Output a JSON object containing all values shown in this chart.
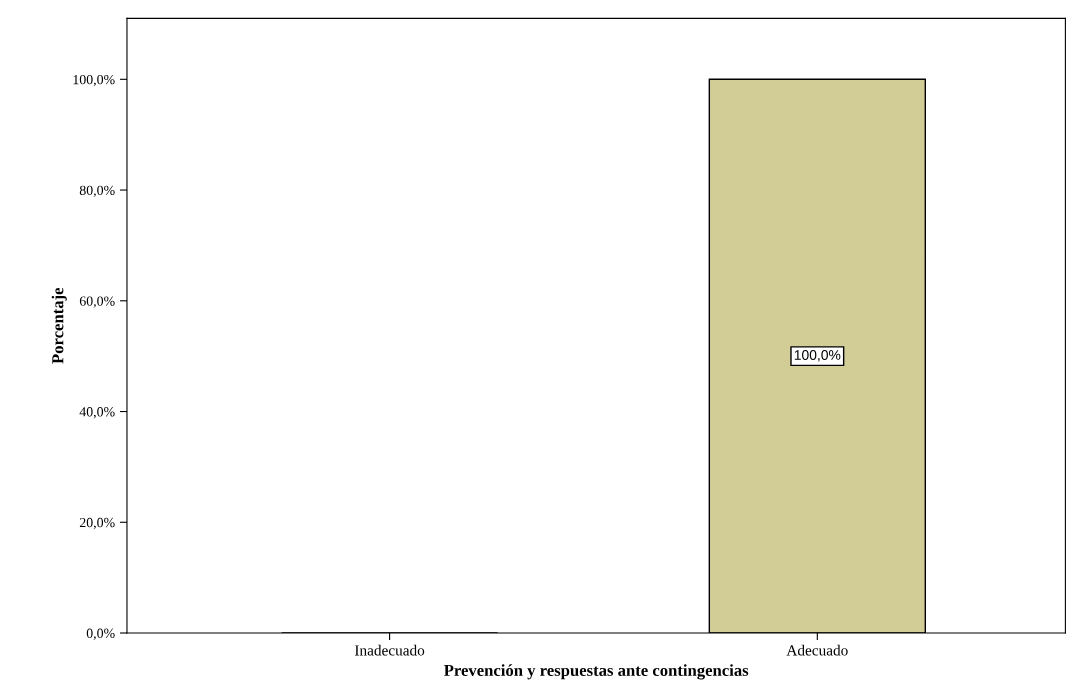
{
  "chart_data": {
    "type": "bar",
    "xlabel": "Prevención y respuestas ante contingencias",
    "ylabel": "Porcentaje",
    "categories": [
      "Inadecuado",
      "Adecuado"
    ],
    "values": [
      0,
      100
    ],
    "color": "#d2cc96",
    "value_labels": [
      null,
      "100,0%"
    ],
    "ylim": [
      0,
      111
    ],
    "yticks": [
      {
        "value": 0,
        "label": "0,0%"
      },
      {
        "value": 20,
        "label": "20,0%"
      },
      {
        "value": 40,
        "label": "40,0%"
      },
      {
        "value": 60,
        "label": "60,0%"
      },
      {
        "value": 80,
        "label": "80,0%"
      },
      {
        "value": 100,
        "label": "100,0%"
      }
    ],
    "grid": false,
    "legend": false
  }
}
